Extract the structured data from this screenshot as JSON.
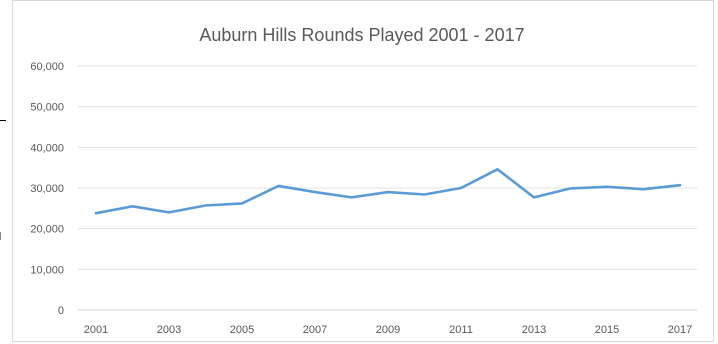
{
  "chart_data": {
    "type": "line",
    "title": "Auburn Hills Rounds Played 2001 - 2017",
    "xlabel": "",
    "ylabel": "",
    "x": [
      2001,
      2002,
      2003,
      2004,
      2005,
      2006,
      2007,
      2008,
      2009,
      2010,
      2011,
      2012,
      2013,
      2014,
      2015,
      2016,
      2017
    ],
    "x_tick_labels": [
      "2001",
      "2003",
      "2005",
      "2007",
      "2009",
      "2011",
      "2013",
      "2015",
      "2017"
    ],
    "y_tick_labels": [
      "0",
      "10,000",
      "20,000",
      "30,000",
      "40,000",
      "50,000",
      "60,000"
    ],
    "ylim": [
      0,
      60000
    ],
    "y_ticks": [
      0,
      10000,
      20000,
      30000,
      40000,
      50000,
      60000
    ],
    "grid": true,
    "legend": "none",
    "series": [
      {
        "values": [
          23800,
          25500,
          24000,
          25700,
          26200,
          30500,
          29000,
          27700,
          29000,
          28400,
          30000,
          34600,
          27700,
          29900,
          30300,
          29700,
          30700
        ],
        "color": "#5b9bd5"
      }
    ]
  }
}
